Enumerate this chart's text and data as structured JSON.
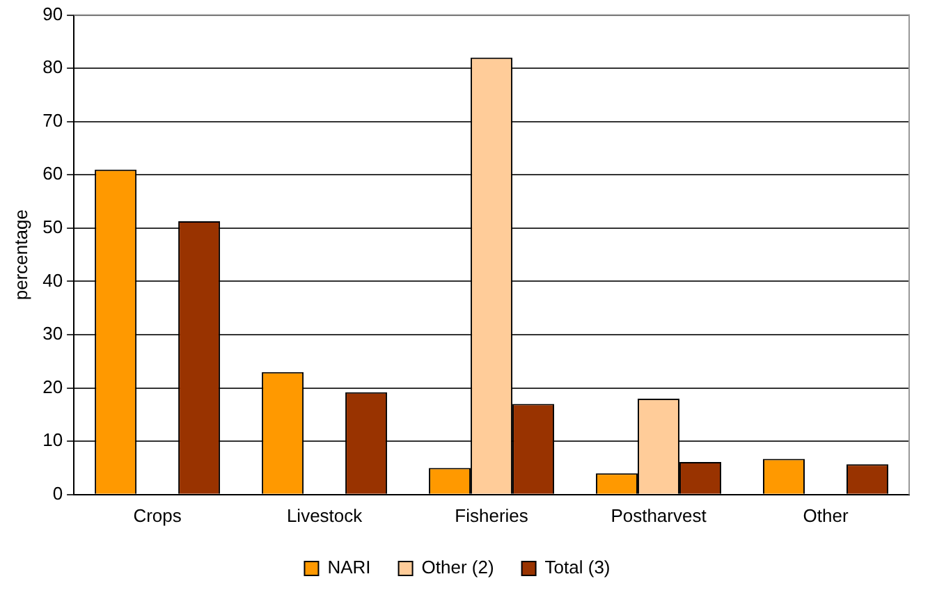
{
  "chart_data": {
    "type": "bar",
    "ylabel": "percentage",
    "categories": [
      "Crops",
      "Livestock",
      "Fisheries",
      "Postharvest",
      "Other"
    ],
    "series": [
      {
        "name": "NARI",
        "color": "#ff9900",
        "values": [
          61,
          23,
          5,
          4,
          6.7
        ]
      },
      {
        "name": "Other (2)",
        "color": "#ffcc99",
        "values": [
          null,
          null,
          82,
          18,
          null
        ]
      },
      {
        "name": "Total (3)",
        "color": "#993300",
        "values": [
          51.3,
          19.2,
          17,
          6.1,
          5.7
        ]
      }
    ],
    "ylim": [
      0,
      90
    ],
    "yticks": [
      0,
      10,
      20,
      30,
      40,
      50,
      60,
      70,
      80,
      90
    ],
    "grid": "y",
    "legend": "bottom"
  }
}
